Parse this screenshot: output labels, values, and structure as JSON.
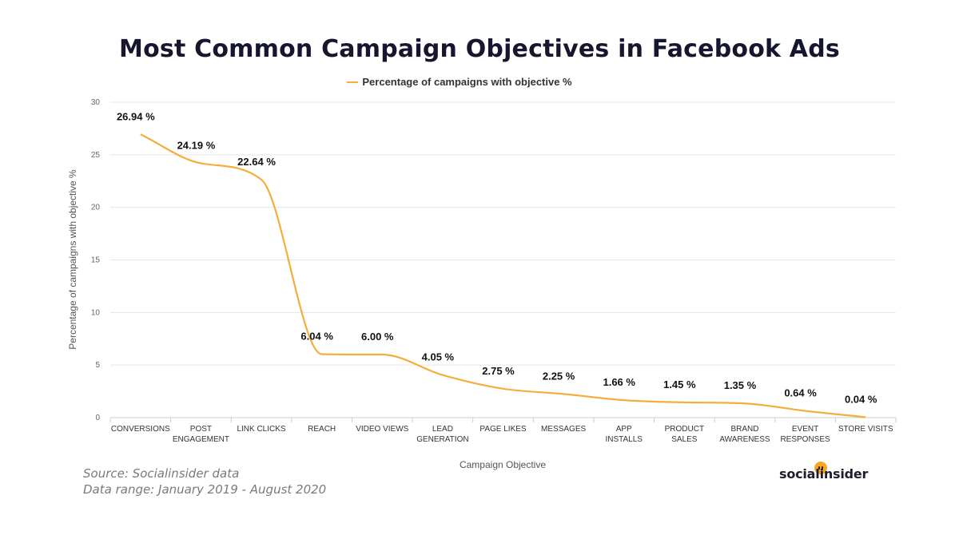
{
  "title": "Most Common Campaign Objectives in Facebook Ads",
  "legend": {
    "label": "Percentage of campaigns with objective %"
  },
  "source": {
    "line1": "Source: Socialinsider data",
    "line2": "Data range: January 2019 - August 2020"
  },
  "brand": {
    "name": "socialinsider"
  },
  "colors": {
    "line": "#f5ad3b",
    "grid": "#e6e6e6",
    "axis": "#cccccc",
    "title": "#16162e",
    "brand_dot": "#f7a823"
  },
  "chart_data": {
    "type": "line",
    "xlabel": "Campaign Objective",
    "ylabel": "Percentage of campaigns with objective %",
    "ylim": [
      0,
      30
    ],
    "yticks": [
      0,
      5,
      10,
      15,
      20,
      25,
      30
    ],
    "grid": true,
    "legend_position": "top",
    "categories": [
      [
        "CONVERSIONS"
      ],
      [
        "POST",
        "ENGAGEMENT"
      ],
      [
        "LINK CLICKS"
      ],
      [
        "REACH"
      ],
      [
        "VIDEO VIEWS"
      ],
      [
        "LEAD",
        "GENERATION"
      ],
      [
        "PAGE LIKES"
      ],
      [
        "MESSAGES"
      ],
      [
        "APP",
        "INSTALLS"
      ],
      [
        "PRODUCT",
        "SALES"
      ],
      [
        "BRAND",
        "AWARENESS"
      ],
      [
        "EVENT",
        "RESPONSES"
      ],
      [
        "STORE VISITS"
      ]
    ],
    "series": [
      {
        "name": "Percentage of campaigns with objective %",
        "values": [
          26.94,
          24.19,
          22.64,
          6.04,
          6.0,
          4.05,
          2.75,
          2.25,
          1.66,
          1.45,
          1.35,
          0.64,
          0.04
        ],
        "data_labels": [
          "26.94 %",
          "24.19 %",
          "22.64 %",
          "6.04 %",
          "6.00 %",
          "4.05 %",
          "2.75 %",
          "2.25 %",
          "1.66 %",
          "1.45 %",
          "1.35 %",
          "0.64 %",
          "0.04 %"
        ]
      }
    ]
  }
}
